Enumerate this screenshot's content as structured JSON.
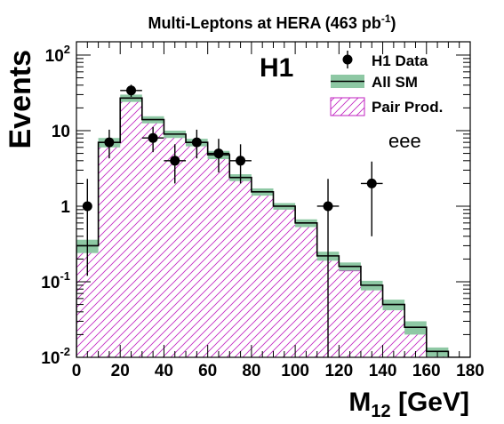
{
  "chart_data": {
    "type": "bar",
    "title": "Multi-Leptons at HERA (463 pb",
    "title_sup": "-1",
    "title_end": ")",
    "ylabel": "Events",
    "xlabel_main": "M",
    "xlabel_sub": "12",
    "xlabel_unit": " [GeV]",
    "experiment": "H1",
    "channel": "eee",
    "y_scale": "log",
    "ylim": [
      0.01,
      150
    ],
    "xlim": [
      0,
      180
    ],
    "x_ticks": [
      "0",
      "20",
      "40",
      "60",
      "80",
      "100",
      "120",
      "140",
      "160",
      "180"
    ],
    "y_ticks": [
      {
        "value": 0.01,
        "base": "10",
        "exp": "-2"
      },
      {
        "value": 0.1,
        "base": "10",
        "exp": "-1"
      },
      {
        "value": 1,
        "base": "1",
        "exp": ""
      },
      {
        "value": 10,
        "base": "10",
        "exp": ""
      },
      {
        "value": 100,
        "base": "10",
        "exp": "2"
      }
    ],
    "legend_position": "top-right",
    "legend": [
      {
        "label": "H1 Data",
        "kind": "marker"
      },
      {
        "label": "All SM",
        "kind": "band"
      },
      {
        "label": "Pair Prod.",
        "kind": "hatch"
      }
    ],
    "bin_edges": [
      0,
      10,
      20,
      30,
      40,
      50,
      60,
      70,
      80,
      90,
      100,
      110,
      120,
      130,
      140,
      150,
      160,
      170,
      180
    ],
    "series": [
      {
        "name": "All SM",
        "values": [
          0.3,
          7.0,
          27.0,
          14.0,
          9.0,
          7.0,
          4.8,
          2.4,
          1.55,
          1.0,
          0.6,
          0.22,
          0.16,
          0.09,
          0.05,
          0.025,
          0.012,
          0.01
        ],
        "band_lo": [
          0.24,
          6.0,
          24.0,
          12.5,
          8.0,
          6.2,
          4.2,
          2.15,
          1.38,
          0.9,
          0.53,
          0.19,
          0.14,
          0.077,
          0.042,
          0.02,
          0.0102,
          0.01
        ],
        "band_hi": [
          0.36,
          8.0,
          30.0,
          15.5,
          10.0,
          7.8,
          5.4,
          2.65,
          1.72,
          1.1,
          0.67,
          0.25,
          0.18,
          0.103,
          0.058,
          0.03,
          0.0135,
          0.01
        ]
      },
      {
        "name": "Pair Prod.",
        "values": [
          0.27,
          6.5,
          24.5,
          13.0,
          8.3,
          6.5,
          4.4,
          2.2,
          1.42,
          0.92,
          0.55,
          0.2,
          0.14,
          0.08,
          0.044,
          0.021,
          0.0105,
          0.01
        ]
      },
      {
        "name": "H1 Data",
        "x": [
          5,
          15,
          25,
          35,
          45,
          55,
          65,
          75,
          115,
          135
        ],
        "y": [
          1,
          7,
          34,
          8,
          4,
          7,
          5,
          4,
          1,
          2
        ],
        "y_lo": [
          0.12,
          4.3,
          28,
          5.2,
          2.0,
          4.3,
          2.8,
          2.0,
          0.01,
          0.4
        ],
        "y_hi": [
          2.3,
          10.3,
          40.5,
          11.2,
          6.6,
          10.3,
          7.8,
          6.6,
          2.3,
          3.9
        ],
        "x_err": [
          0,
          5,
          5,
          5,
          5,
          5,
          5,
          5,
          5,
          5
        ]
      }
    ]
  }
}
